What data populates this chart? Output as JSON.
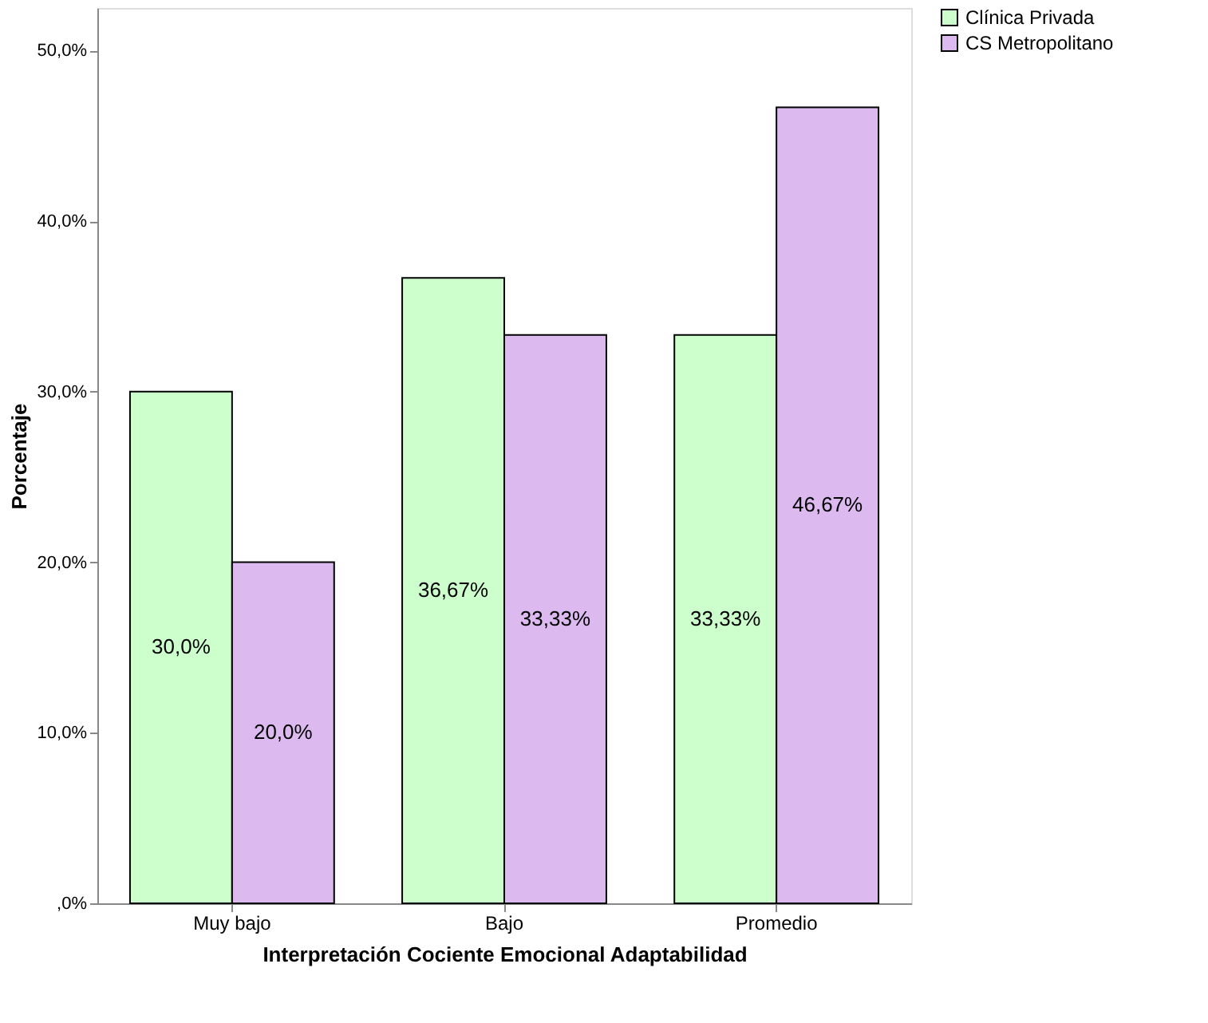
{
  "chart_data": {
    "type": "bar",
    "xlabel": "Interpretación Cociente Emocional Adaptabilidad",
    "ylabel": "Porcentaje",
    "categories": [
      "Muy bajo",
      "Bajo",
      "Promedio"
    ],
    "series": [
      {
        "name": "Clínica Privada",
        "color": "#ccffcc",
        "values": [
          30.0,
          36.67,
          33.33
        ],
        "value_labels": [
          "30,0%",
          "36,67%",
          "33,33%"
        ]
      },
      {
        "name": "CS Metropolitano",
        "color": "#dcbaf0",
        "values": [
          20.0,
          33.33,
          46.67
        ],
        "value_labels": [
          "20,0%",
          "33,33%",
          "46,67%"
        ]
      }
    ],
    "ylim": [
      0,
      52.5
    ],
    "yticks": [
      {
        "value": 0,
        "label": ",0%"
      },
      {
        "value": 10,
        "label": "10,0%"
      },
      {
        "value": 20,
        "label": "20,0%"
      },
      {
        "value": 30,
        "label": "30,0%"
      },
      {
        "value": 40,
        "label": "40,0%"
      },
      {
        "value": 50,
        "label": "50,0%"
      }
    ],
    "grid": false,
    "legend": "top right"
  }
}
